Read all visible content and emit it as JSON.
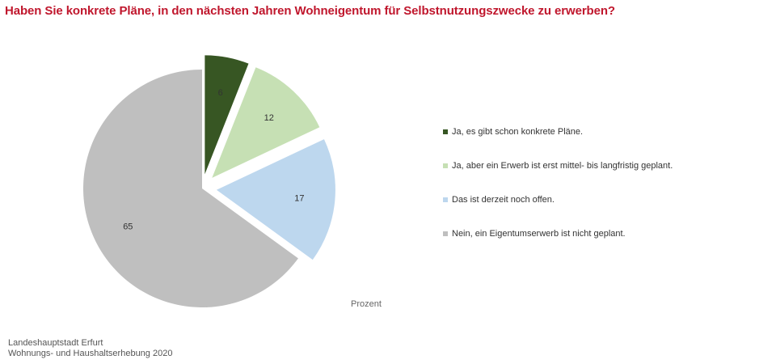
{
  "chart_data": {
    "type": "pie",
    "title": "Haben Sie konkrete Pläne, in den nächsten Jahren Wohneigentum für Selbstnutzungszwecke zu erwerben?",
    "unit_label": "Prozent",
    "legend_position": "right",
    "slices": [
      {
        "label": "Ja, es gibt schon konkrete Pläne.",
        "value": 6,
        "color": "#375623",
        "exploded": true
      },
      {
        "label": "Ja, aber ein Erwerb ist erst mittel- bis langfristig geplant.",
        "value": 12,
        "color": "#c6e0b4",
        "exploded": true
      },
      {
        "label": "Das ist derzeit noch offen.",
        "value": 17,
        "color": "#bdd7ee",
        "exploded": true
      },
      {
        "label": "Nein, ein Eigentumserwerb ist nicht geplant.",
        "value": 65,
        "color": "#bfbfbf",
        "exploded": false
      }
    ]
  },
  "source": {
    "line1": "Landeshauptstadt Erfurt",
    "line2": "Wohnungs- und Haushaltserhebung 2020"
  }
}
